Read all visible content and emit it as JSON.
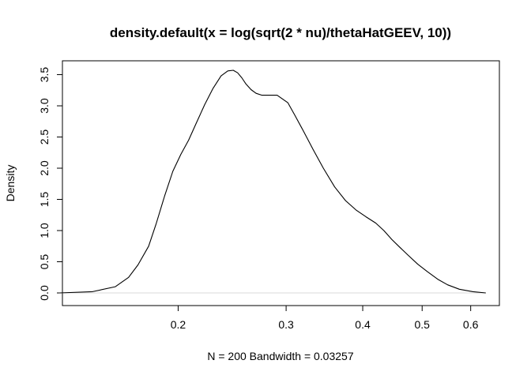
{
  "chart_data": {
    "type": "line",
    "title": "density.default(x = log(sqrt(2 * nu)/thetaHatGEEV, 10))",
    "xlabel": "N = 200   Bandwidth = 0.03257",
    "ylabel": "Density",
    "x_scale": "log10",
    "xlim": [
      0.1295,
      0.6683
    ],
    "ylim": [
      0,
      3.57
    ],
    "x_ticks": [
      0.2,
      0.3,
      0.4,
      0.5,
      0.6
    ],
    "x_tick_labels": [
      "0.2",
      "0.3",
      "0.4",
      "0.5",
      "0.6"
    ],
    "y_ticks": [
      0,
      0.5,
      1.0,
      1.5,
      2.0,
      2.5,
      3.0,
      3.5
    ],
    "y_tick_labels": [
      "0.0",
      "0.5",
      "1.0",
      "1.5",
      "2.0",
      "2.5",
      "3.0",
      "3.5"
    ],
    "grid": false,
    "baseline": 0,
    "series": [
      {
        "x": [
          0.128,
          0.145,
          0.158,
          0.166,
          0.172,
          0.179,
          0.184,
          0.19,
          0.196,
          0.202,
          0.208,
          0.214,
          0.221,
          0.228,
          0.235,
          0.241,
          0.246,
          0.25,
          0.254,
          0.258,
          0.263,
          0.268,
          0.274,
          0.28,
          0.29,
          0.302,
          0.31,
          0.32,
          0.332,
          0.345,
          0.36,
          0.375,
          0.39,
          0.405,
          0.42,
          0.433,
          0.446,
          0.46,
          0.475,
          0.492,
          0.51,
          0.53,
          0.55,
          0.575,
          0.605,
          0.635
        ],
        "y": [
          0.0,
          0.02,
          0.1,
          0.25,
          0.45,
          0.75,
          1.1,
          1.55,
          1.95,
          2.22,
          2.45,
          2.72,
          3.02,
          3.28,
          3.48,
          3.56,
          3.57,
          3.53,
          3.45,
          3.35,
          3.26,
          3.2,
          3.17,
          3.17,
          3.17,
          3.05,
          2.85,
          2.6,
          2.3,
          2.0,
          1.7,
          1.48,
          1.33,
          1.22,
          1.12,
          1.0,
          0.86,
          0.73,
          0.6,
          0.46,
          0.34,
          0.22,
          0.13,
          0.06,
          0.02,
          0.0
        ]
      }
    ]
  }
}
